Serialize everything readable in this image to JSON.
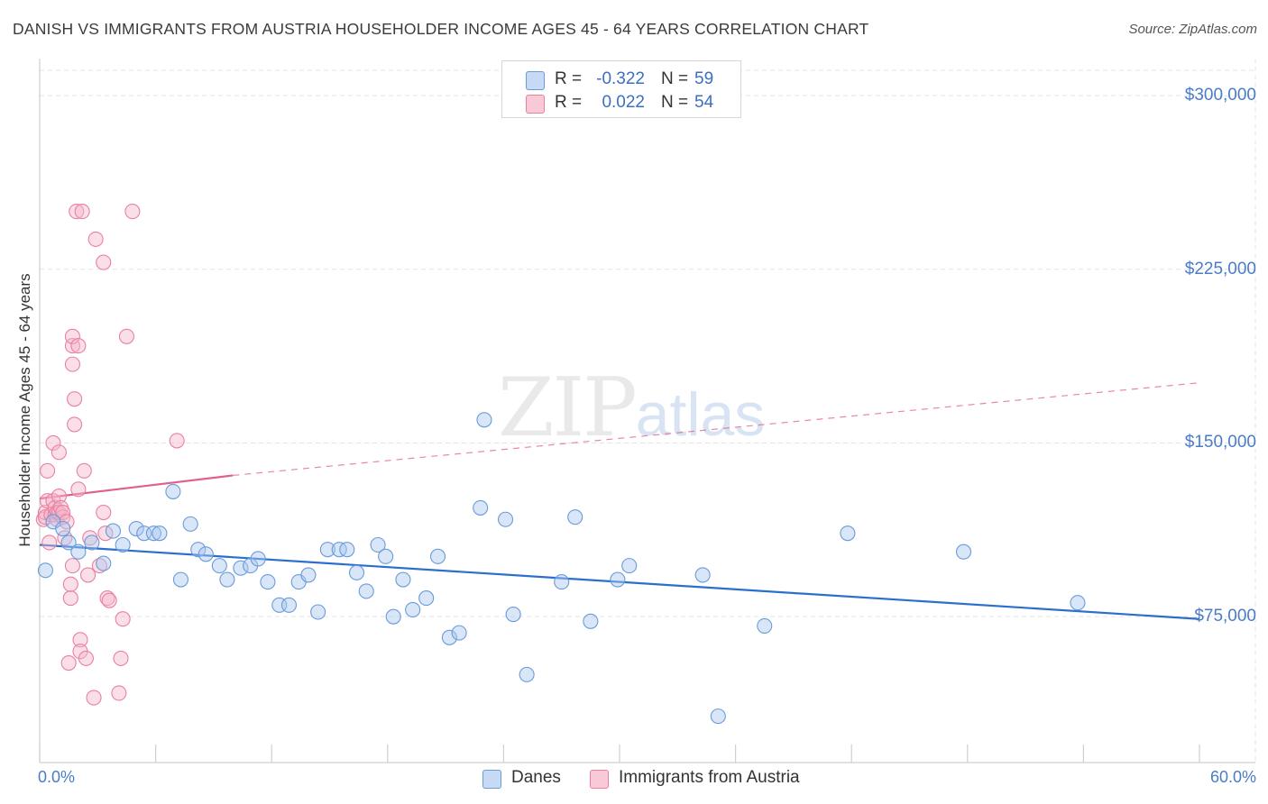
{
  "header": {
    "title": "DANISH VS IMMIGRANTS FROM AUSTRIA HOUSEHOLDER INCOME AGES 45 - 64 YEARS CORRELATION CHART",
    "source": "Source: ZipAtlas.com"
  },
  "watermark": {
    "zip": "ZIP",
    "atlas": "atlas"
  },
  "legend_top": {
    "rows": [
      {
        "r_label": "R =",
        "r_value": "-0.322",
        "n_label": "N =",
        "n_value": "59"
      },
      {
        "r_label": "R =",
        "r_value": "0.022",
        "n_label": "N =",
        "n_value": "54"
      }
    ]
  },
  "colors": {
    "danes_fill": "#a9c8ef",
    "danes_stroke": "#6a9bd8",
    "danes_line": "#2a6fcf",
    "austria_fill": "#f5b8cb",
    "austria_stroke": "#e9809f",
    "austria_line": "#e0608a",
    "tick_label": "#4a7cc7",
    "grid": "#e4e4e4"
  },
  "chart_data": {
    "type": "scatter",
    "title": "DANISH VS IMMIGRANTS FROM AUSTRIA HOUSEHOLDER INCOME AGES 45 - 64 YEARS CORRELATION CHART",
    "xlabel": "",
    "ylabel": "Householder Income Ages 45 - 64 years",
    "xlim": [
      0,
      60
    ],
    "ylim": [
      12000,
      316000
    ],
    "x_tick_labels": [
      "0.0%",
      "60.0%"
    ],
    "y_ticks": [
      75000,
      150000,
      225000,
      300000
    ],
    "y_tick_labels": [
      "$75,000",
      "$150,000",
      "$225,000",
      "$300,000"
    ],
    "grid": true,
    "legend_placement": "bottom",
    "series": [
      {
        "name": "Danes",
        "R": -0.322,
        "N": 59,
        "trend": {
          "x": [
            0,
            60
          ],
          "y": [
            106000,
            74000
          ],
          "style": "solid"
        },
        "points": [
          [
            0.3,
            95000
          ],
          [
            0.7,
            116000
          ],
          [
            1.2,
            113000
          ],
          [
            1.5,
            107000
          ],
          [
            2.0,
            103000
          ],
          [
            2.7,
            107000
          ],
          [
            3.3,
            98000
          ],
          [
            3.8,
            112000
          ],
          [
            4.3,
            106000
          ],
          [
            5.0,
            113000
          ],
          [
            5.4,
            111000
          ],
          [
            5.9,
            111000
          ],
          [
            6.2,
            111000
          ],
          [
            6.9,
            129000
          ],
          [
            7.3,
            91000
          ],
          [
            7.8,
            115000
          ],
          [
            8.2,
            104000
          ],
          [
            8.6,
            102000
          ],
          [
            9.3,
            97000
          ],
          [
            9.7,
            91000
          ],
          [
            10.4,
            96000
          ],
          [
            10.9,
            97000
          ],
          [
            11.3,
            100000
          ],
          [
            11.8,
            90000
          ],
          [
            12.4,
            80000
          ],
          [
            12.9,
            80000
          ],
          [
            13.4,
            90000
          ],
          [
            13.9,
            93000
          ],
          [
            14.4,
            77000
          ],
          [
            14.9,
            104000
          ],
          [
            15.5,
            104000
          ],
          [
            15.9,
            104000
          ],
          [
            16.4,
            94000
          ],
          [
            16.9,
            86000
          ],
          [
            17.5,
            106000
          ],
          [
            17.9,
            101000
          ],
          [
            18.3,
            75000
          ],
          [
            18.8,
            91000
          ],
          [
            19.3,
            78000
          ],
          [
            20.0,
            83000
          ],
          [
            20.6,
            101000
          ],
          [
            21.2,
            66000
          ],
          [
            21.7,
            68000
          ],
          [
            22.8,
            122000
          ],
          [
            23.0,
            160000
          ],
          [
            24.1,
            117000
          ],
          [
            24.5,
            76000
          ],
          [
            25.2,
            50000
          ],
          [
            27.0,
            90000
          ],
          [
            27.7,
            118000
          ],
          [
            28.5,
            73000
          ],
          [
            29.9,
            91000
          ],
          [
            30.5,
            97000
          ],
          [
            34.3,
            93000
          ],
          [
            35.1,
            32000
          ],
          [
            37.5,
            71000
          ],
          [
            41.8,
            111000
          ],
          [
            47.8,
            103000
          ],
          [
            53.7,
            81000
          ]
        ]
      },
      {
        "name": "Immigrants from Austria",
        "R": 0.022,
        "N": 54,
        "trend": {
          "x": [
            0,
            10
          ],
          "y": [
            126000,
            136000
          ],
          "style": "solid",
          "extended": {
            "x": [
              10,
              60
            ],
            "y": [
              136000,
              176000
            ],
            "style": "dashed"
          }
        },
        "points": [
          [
            0.2,
            117000
          ],
          [
            0.3,
            120000
          ],
          [
            0.3,
            118000
          ],
          [
            0.4,
            125000
          ],
          [
            0.4,
            138000
          ],
          [
            0.5,
            107000
          ],
          [
            0.6,
            119000
          ],
          [
            0.7,
            125000
          ],
          [
            0.7,
            150000
          ],
          [
            0.8,
            119000
          ],
          [
            0.8,
            122000
          ],
          [
            0.9,
            117000
          ],
          [
            0.9,
            120000
          ],
          [
            1.0,
            120000
          ],
          [
            1.0,
            127000
          ],
          [
            1.0,
            146000
          ],
          [
            1.1,
            122000
          ],
          [
            1.2,
            118000
          ],
          [
            1.2,
            120000
          ],
          [
            1.3,
            109000
          ],
          [
            1.4,
            116000
          ],
          [
            1.5,
            55000
          ],
          [
            1.6,
            83000
          ],
          [
            1.6,
            89000
          ],
          [
            1.7,
            97000
          ],
          [
            1.7,
            192000
          ],
          [
            1.7,
            196000
          ],
          [
            1.7,
            184000
          ],
          [
            1.8,
            169000
          ],
          [
            1.8,
            158000
          ],
          [
            1.9,
            250000
          ],
          [
            2.0,
            192000
          ],
          [
            2.0,
            130000
          ],
          [
            2.1,
            65000
          ],
          [
            2.1,
            60000
          ],
          [
            2.2,
            250000
          ],
          [
            2.3,
            138000
          ],
          [
            2.4,
            57000
          ],
          [
            2.5,
            93000
          ],
          [
            2.6,
            109000
          ],
          [
            2.8,
            40000
          ],
          [
            2.9,
            238000
          ],
          [
            3.1,
            97000
          ],
          [
            3.3,
            120000
          ],
          [
            3.3,
            228000
          ],
          [
            3.4,
            111000
          ],
          [
            3.5,
            83000
          ],
          [
            3.6,
            82000
          ],
          [
            4.1,
            42000
          ],
          [
            4.2,
            57000
          ],
          [
            4.3,
            74000
          ],
          [
            4.5,
            196000
          ],
          [
            4.8,
            250000
          ],
          [
            7.1,
            151000
          ]
        ]
      }
    ]
  }
}
